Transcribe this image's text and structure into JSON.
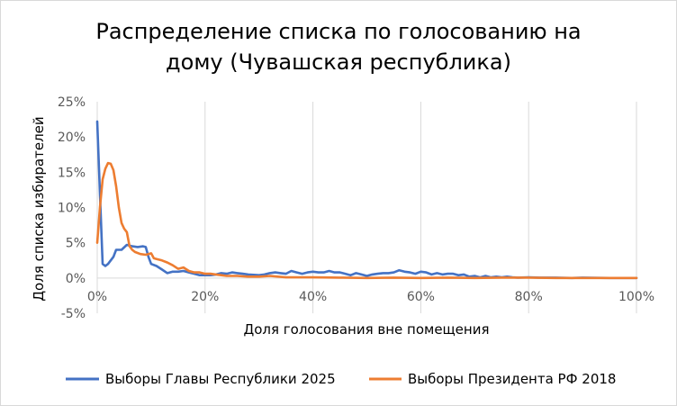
{
  "chart_data": {
    "type": "line",
    "title_lines": [
      "Распределение списка по голосованию на",
      "дому (Чувашская республика)"
    ],
    "xlabel": "Доля голосования вне помещения",
    "ylabel": "Доля списка избирателей",
    "xlim": [
      0,
      100
    ],
    "ylim": [
      -5,
      25
    ],
    "x_ticks": [
      0,
      20,
      40,
      60,
      80,
      100
    ],
    "x_tick_labels": [
      "0%",
      "20%",
      "40%",
      "60%",
      "80%",
      "100%"
    ],
    "y_ticks": [
      25,
      20,
      15,
      10,
      5,
      0,
      -5
    ],
    "y_tick_labels": [
      "25%",
      "20%",
      "15%",
      "10%",
      "5%",
      "0%",
      "-5%"
    ],
    "grid": "vertical",
    "legend_position": "bottom",
    "series": [
      {
        "name": "Выборы Главы Республики 2025",
        "color": "#4472c4",
        "points": [
          [
            0,
            22.2
          ],
          [
            0.5,
            12
          ],
          [
            1,
            2
          ],
          [
            1.5,
            1.7
          ],
          [
            2,
            2
          ],
          [
            3,
            3
          ],
          [
            3.5,
            4
          ],
          [
            4.5,
            4
          ],
          [
            5.5,
            4.7
          ],
          [
            6.5,
            4.5
          ],
          [
            7.5,
            4.4
          ],
          [
            8.5,
            4.5
          ],
          [
            9,
            4.4
          ],
          [
            9.5,
            3
          ],
          [
            10,
            2
          ],
          [
            11,
            1.7
          ],
          [
            12,
            1.2
          ],
          [
            13,
            0.7
          ],
          [
            14,
            0.9
          ],
          [
            15,
            0.9
          ],
          [
            16,
            1
          ],
          [
            17,
            0.8
          ],
          [
            18,
            0.6
          ],
          [
            19,
            0.4
          ],
          [
            20,
            0.4
          ],
          [
            21,
            0.4
          ],
          [
            22,
            0.5
          ],
          [
            23,
            0.7
          ],
          [
            24,
            0.6
          ],
          [
            25,
            0.8
          ],
          [
            26,
            0.7
          ],
          [
            27,
            0.6
          ],
          [
            28,
            0.5
          ],
          [
            30,
            0.4
          ],
          [
            31,
            0.5
          ],
          [
            32,
            0.7
          ],
          [
            33,
            0.8
          ],
          [
            34,
            0.7
          ],
          [
            35,
            0.6
          ],
          [
            36,
            1
          ],
          [
            37,
            0.8
          ],
          [
            38,
            0.6
          ],
          [
            39,
            0.8
          ],
          [
            40,
            0.9
          ],
          [
            41,
            0.8
          ],
          [
            42,
            0.8
          ],
          [
            43,
            1
          ],
          [
            44,
            0.8
          ],
          [
            45,
            0.8
          ],
          [
            46,
            0.6
          ],
          [
            47,
            0.4
          ],
          [
            48,
            0.7
          ],
          [
            49,
            0.5
          ],
          [
            50,
            0.3
          ],
          [
            51,
            0.5
          ],
          [
            52,
            0.6
          ],
          [
            53,
            0.7
          ],
          [
            54,
            0.7
          ],
          [
            55,
            0.8
          ],
          [
            56,
            1.1
          ],
          [
            57,
            0.9
          ],
          [
            58,
            0.8
          ],
          [
            59,
            0.6
          ],
          [
            60,
            0.9
          ],
          [
            61,
            0.8
          ],
          [
            62,
            0.5
          ],
          [
            63,
            0.7
          ],
          [
            64,
            0.5
          ],
          [
            65,
            0.6
          ],
          [
            66,
            0.6
          ],
          [
            67,
            0.4
          ],
          [
            68,
            0.5
          ],
          [
            69,
            0.2
          ],
          [
            70,
            0.3
          ],
          [
            71,
            0.1
          ],
          [
            72,
            0.3
          ],
          [
            73,
            0.1
          ],
          [
            74,
            0.2
          ],
          [
            75,
            0.1
          ],
          [
            76,
            0.2
          ],
          [
            77,
            0.1
          ],
          [
            78,
            0.05
          ],
          [
            80,
            0.1
          ],
          [
            82,
            0.05
          ],
          [
            85,
            0.05
          ],
          [
            88,
            0
          ],
          [
            90,
            0.05
          ],
          [
            95,
            0
          ],
          [
            100,
            0
          ]
        ]
      },
      {
        "name": "Выборы Президента РФ 2018",
        "color": "#ed7d31",
        "points": [
          [
            0,
            5
          ],
          [
            0.5,
            10
          ],
          [
            1,
            14
          ],
          [
            1.5,
            15.5
          ],
          [
            2,
            16.3
          ],
          [
            2.5,
            16.2
          ],
          [
            3,
            15.3
          ],
          [
            3.5,
            13
          ],
          [
            4,
            10
          ],
          [
            4.5,
            7.8
          ],
          [
            5,
            7
          ],
          [
            5.5,
            6.5
          ],
          [
            6,
            4.5
          ],
          [
            6.5,
            4
          ],
          [
            7,
            3.7
          ],
          [
            8,
            3.4
          ],
          [
            9,
            3.3
          ],
          [
            10,
            3.5
          ],
          [
            10.5,
            2.8
          ],
          [
            11,
            2.7
          ],
          [
            12,
            2.5
          ],
          [
            13,
            2.2
          ],
          [
            14,
            1.8
          ],
          [
            15,
            1.3
          ],
          [
            16,
            1.5
          ],
          [
            17,
            1
          ],
          [
            18,
            0.8
          ],
          [
            19,
            0.8
          ],
          [
            20,
            0.6
          ],
          [
            21,
            0.6
          ],
          [
            22,
            0.5
          ],
          [
            23,
            0.4
          ],
          [
            24,
            0.3
          ],
          [
            26,
            0.3
          ],
          [
            28,
            0.2
          ],
          [
            30,
            0.2
          ],
          [
            32,
            0.3
          ],
          [
            35,
            0.1
          ],
          [
            40,
            0.1
          ],
          [
            45,
            0.05
          ],
          [
            50,
            0
          ],
          [
            55,
            0.05
          ],
          [
            60,
            0
          ],
          [
            65,
            0.05
          ],
          [
            70,
            0
          ],
          [
            75,
            0.05
          ],
          [
            80,
            0.05
          ],
          [
            85,
            0
          ],
          [
            90,
            0
          ],
          [
            95,
            0
          ],
          [
            100,
            0
          ]
        ]
      }
    ]
  }
}
